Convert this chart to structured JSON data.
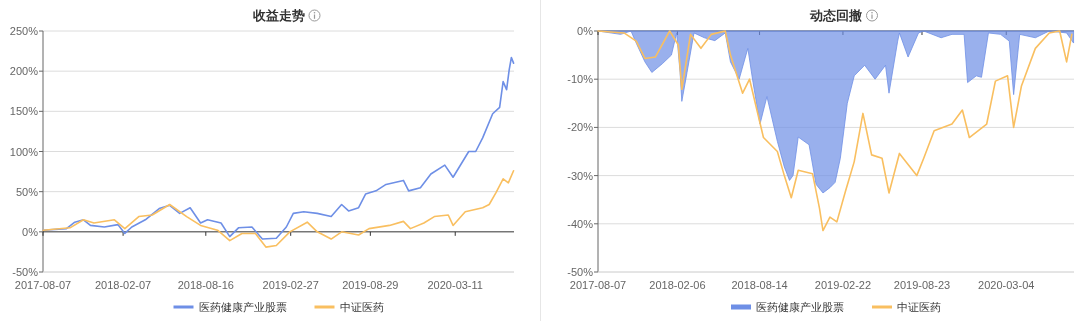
{
  "chart_data": [
    {
      "type": "line",
      "title": "收益走势",
      "xlim": [
        "2017-08-07",
        "2020-07-24"
      ],
      "xticks": [
        "2017-08-07",
        "2018-02-07",
        "2018-08-16",
        "2019-02-27",
        "2019-08-29",
        "2020-03-11"
      ],
      "ylim": [
        -50,
        250
      ],
      "yticks": [
        {
          "value": -50,
          "label": "-50%"
        },
        {
          "value": 0,
          "label": "0%"
        },
        {
          "value": 50,
          "label": "50%"
        },
        {
          "value": 100,
          "label": "100%"
        },
        {
          "value": 150,
          "label": "150%"
        },
        {
          "value": 200,
          "label": "200%"
        },
        {
          "value": 250,
          "label": "250%"
        }
      ],
      "grid": "y",
      "legend": "bottom",
      "series": [
        {
          "name": "医药健康产业股票",
          "color": "#6e8fe6",
          "x": [
            "2017-08-07",
            "2017-09-30",
            "2017-10-19",
            "2017-11-08",
            "2017-11-24",
            "2017-12-26",
            "2018-01-26",
            "2018-02-11",
            "2018-02-27",
            "2018-03-30",
            "2018-05-01",
            "2018-05-25",
            "2018-06-17",
            "2018-07-11",
            "2018-08-04",
            "2018-08-20",
            "2018-09-20",
            "2018-10-10",
            "2018-10-30",
            "2018-11-30",
            "2018-12-24",
            "2019-01-25",
            "2019-02-17",
            "2019-03-05",
            "2019-03-29",
            "2019-04-29",
            "2019-05-31",
            "2019-06-24",
            "2019-07-10",
            "2019-08-02",
            "2019-08-18",
            "2019-09-11",
            "2019-10-04",
            "2019-11-13",
            "2019-11-25",
            "2019-12-22",
            "2020-01-15",
            "2020-02-16",
            "2020-03-06",
            "2020-04-11",
            "2020-04-27",
            "2020-05-13",
            "2020-06-05",
            "2020-06-21",
            "2020-06-29",
            "2020-07-07",
            "2020-07-13",
            "2020-07-18",
            "2020-07-23"
          ],
          "values": [
            2,
            4,
            12,
            15,
            8,
            6,
            9,
            -2,
            6,
            15,
            29,
            33,
            23,
            30,
            11,
            15,
            11,
            -6,
            5,
            6,
            -9,
            -8,
            6,
            23,
            25,
            23,
            19,
            34,
            26,
            30,
            47,
            51,
            59,
            64,
            51,
            55,
            72,
            83,
            68,
            100,
            100,
            117,
            147,
            155,
            187,
            177,
            202,
            217,
            210
          ]
        },
        {
          "name": "中证医药",
          "color": "#f9bf60",
          "x": [
            "2017-08-07",
            "2017-10-08",
            "2017-11-08",
            "2017-12-02",
            "2018-01-18",
            "2018-02-11",
            "2018-03-15",
            "2018-04-15",
            "2018-05-25",
            "2018-07-03",
            "2018-08-04",
            "2018-09-12",
            "2018-10-10",
            "2018-11-07",
            "2018-12-08",
            "2019-01-01",
            "2019-01-25",
            "2019-02-25",
            "2019-04-06",
            "2019-04-29",
            "2019-05-31",
            "2019-06-24",
            "2019-08-02",
            "2019-08-26",
            "2019-10-12",
            "2019-11-13",
            "2019-11-29",
            "2019-12-30",
            "2020-01-23",
            "2020-02-24",
            "2020-03-06",
            "2020-04-03",
            "2020-05-13",
            "2020-05-28",
            "2020-06-13",
            "2020-06-29",
            "2020-07-11",
            "2020-07-23"
          ],
          "values": [
            2,
            5,
            15,
            11,
            15,
            4,
            19,
            21,
            34,
            19,
            8,
            2,
            -11,
            -2,
            -2,
            -19,
            -17,
            0,
            12,
            0,
            -9,
            0,
            -4,
            4,
            8,
            13,
            4,
            11,
            19,
            21,
            8,
            25,
            30,
            34,
            49,
            66,
            61,
            76
          ]
        }
      ]
    },
    {
      "type": "line",
      "title": "动态回撤",
      "xlim": [
        "2017-08-07",
        "2020-08-07"
      ],
      "xticks": [
        "2017-08-07",
        "2018-02-06",
        "2018-08-14",
        "2019-02-22",
        "2019-08-23",
        "2020-03-04"
      ],
      "ylim": [
        -50,
        0
      ],
      "yticks": [
        {
          "value": -50,
          "label": "-50%"
        },
        {
          "value": -40,
          "label": "-40%"
        },
        {
          "value": -30,
          "label": "-30%"
        },
        {
          "value": -20,
          "label": "-20%"
        },
        {
          "value": -10,
          "label": "-10%"
        },
        {
          "value": 0,
          "label": "0%"
        }
      ],
      "grid": "y",
      "legend": "bottom",
      "series": [
        {
          "name": "医药健康产业股票",
          "type": "area",
          "color": "#6e8fe6",
          "x": [
            "2017-08-07",
            "2017-09-28",
            "2017-10-22",
            "2017-11-03",
            "2017-11-23",
            "2017-12-09",
            "2018-01-02",
            "2018-01-23",
            "2018-02-04",
            "2018-02-12",
            "2018-02-16",
            "2018-02-28",
            "2018-03-16",
            "2018-04-09",
            "2018-05-03",
            "2018-05-27",
            "2018-06-08",
            "2018-06-28",
            "2018-07-18",
            "2018-07-30",
            "2018-08-15",
            "2018-08-31",
            "2018-09-24",
            "2018-10-10",
            "2018-10-22",
            "2018-10-30",
            "2018-11-11",
            "2018-12-06",
            "2018-12-22",
            "2019-01-07",
            "2019-01-23",
            "2019-02-04",
            "2019-02-16",
            "2019-03-04",
            "2019-03-20",
            "2019-04-13",
            "2019-05-07",
            "2019-05-31",
            "2019-06-08",
            "2019-06-28",
            "2019-07-02",
            "2019-07-22",
            "2019-08-15",
            "2019-08-27",
            "2019-10-06",
            "2019-10-31",
            "2019-11-28",
            "2019-12-06",
            "2019-12-26",
            "2020-01-07",
            "2020-01-23",
            "2020-02-20",
            "2020-03-11",
            "2020-03-21",
            "2020-04-04",
            "2020-05-10",
            "2020-06-11",
            "2020-07-21",
            "2020-08-06"
          ],
          "values": [
            0,
            -0.7,
            0,
            -2.5,
            -6.4,
            -8.6,
            -6.8,
            -5,
            -0.4,
            -8.6,
            -14.6,
            -8.6,
            -0.4,
            -1.4,
            -2,
            -0.4,
            -6.4,
            -10,
            -3.6,
            -10.7,
            -19.3,
            -13.6,
            -22.9,
            -28.2,
            -31,
            -30,
            -22,
            -23.6,
            -31.8,
            -33.6,
            -32.5,
            -31.4,
            -26.4,
            -15,
            -9.3,
            -7.1,
            -10,
            -7.1,
            -12.9,
            -2.1,
            -0.4,
            -5.4,
            -0.4,
            0,
            -1.4,
            -0.7,
            -0.7,
            -10.7,
            -9.3,
            -9.6,
            -0.4,
            -0.7,
            -2.1,
            -13.2,
            -0.7,
            -1.4,
            0,
            -0.4,
            -2.5
          ]
        },
        {
          "name": "中证医药",
          "color": "#f9bf60",
          "x": [
            "2017-08-07",
            "2017-10-06",
            "2017-11-03",
            "2017-11-23",
            "2017-12-17",
            "2018-01-19",
            "2018-02-08",
            "2018-02-16",
            "2018-03-08",
            "2018-04-01",
            "2018-04-25",
            "2018-05-27",
            "2018-06-08",
            "2018-07-06",
            "2018-07-22",
            "2018-08-23",
            "2018-09-24",
            "2018-10-10",
            "2018-10-26",
            "2018-11-11",
            "2018-12-14",
            "2018-12-30",
            "2019-01-07",
            "2019-01-23",
            "2019-02-08",
            "2019-02-28",
            "2019-03-20",
            "2019-04-09",
            "2019-04-29",
            "2019-05-23",
            "2019-06-08",
            "2019-07-02",
            "2019-08-11",
            "2019-08-27",
            "2019-09-20",
            "2019-10-31",
            "2019-11-24",
            "2019-12-10",
            "2020-01-19",
            "2020-02-08",
            "2020-03-07",
            "2020-03-21",
            "2020-04-08",
            "2020-05-10",
            "2020-06-11",
            "2020-07-05",
            "2020-07-21",
            "2020-08-02"
          ],
          "values": [
            0,
            -0.4,
            -2.1,
            -5.7,
            -5.4,
            0,
            -2.9,
            -12.1,
            -0.7,
            -3.6,
            -0.7,
            0,
            -5,
            -12.9,
            -10,
            -22.1,
            -25,
            -30,
            -34.6,
            -28.9,
            -29.6,
            -36.8,
            -41.4,
            -38.6,
            -39.6,
            -33.2,
            -27.1,
            -17.1,
            -25.7,
            -26.4,
            -33.6,
            -25.4,
            -30,
            -26.4,
            -20.7,
            -19.3,
            -16.4,
            -22.1,
            -19.3,
            -10.4,
            -9.3,
            -20,
            -11.4,
            -3.6,
            -0.4,
            0,
            -6.4,
            -0.7
          ]
        }
      ]
    }
  ]
}
